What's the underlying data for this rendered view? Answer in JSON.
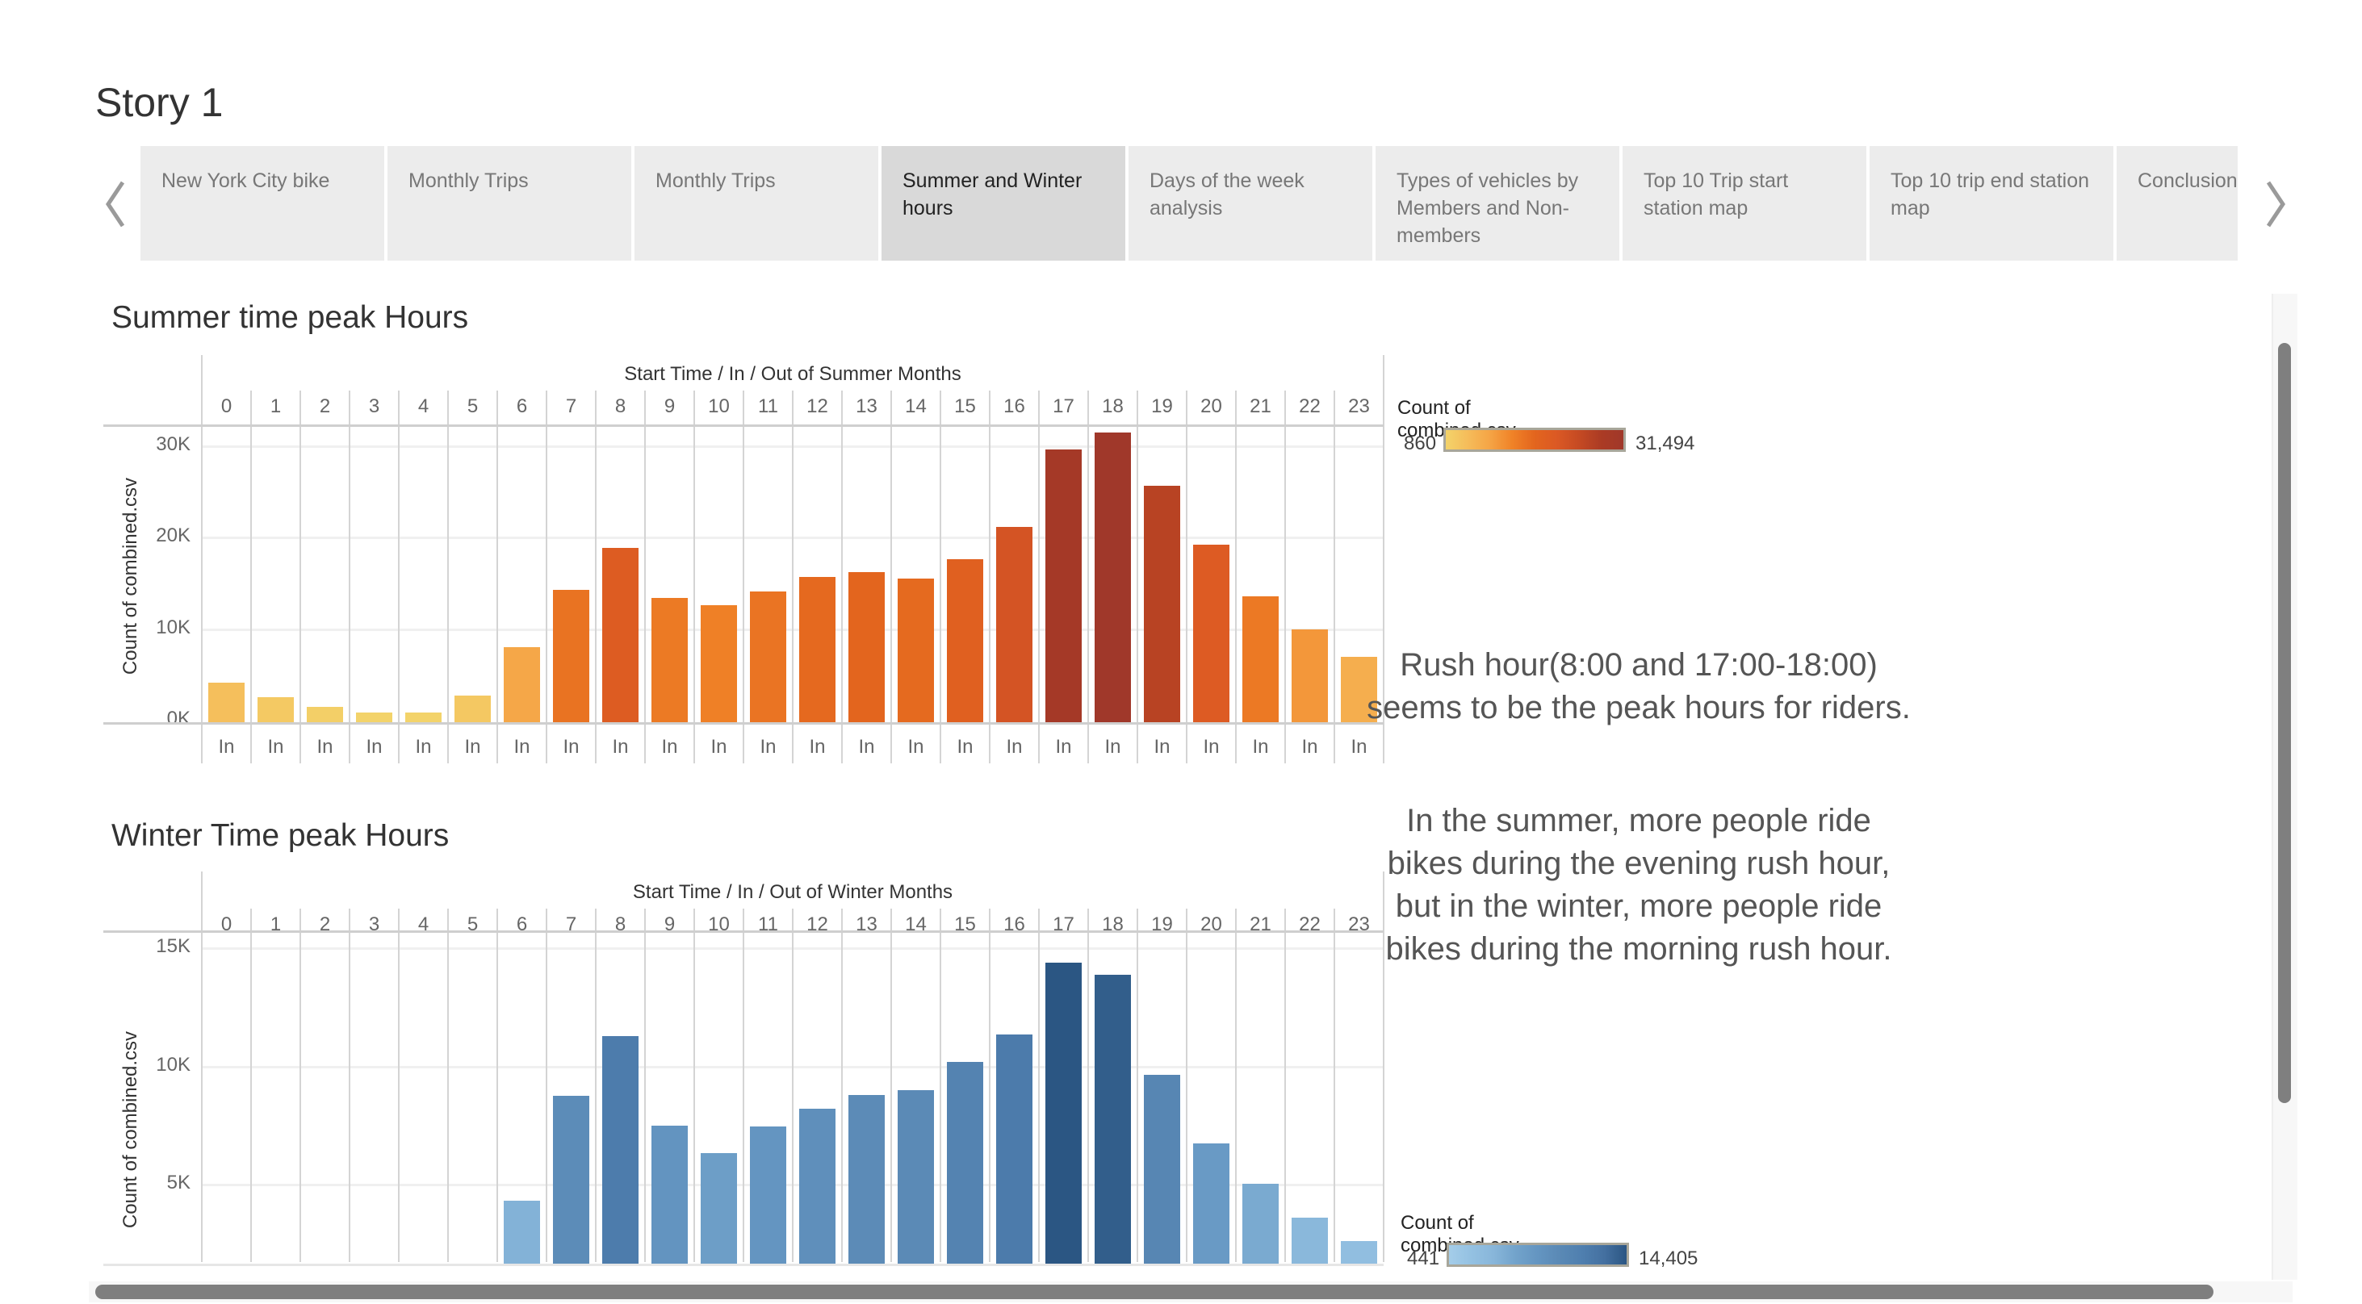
{
  "story_title": "Story 1",
  "nav": {
    "prev_icon": "chevron-left-icon",
    "next_icon": "chevron-right-icon"
  },
  "tabs": [
    {
      "label": "New York City bike",
      "active": false
    },
    {
      "label": "Monthly Trips",
      "active": false
    },
    {
      "label": "Monthly Trips",
      "active": false
    },
    {
      "label": "Summer and Winter hours",
      "active": true
    },
    {
      "label": "Days of the week analysis",
      "active": false
    },
    {
      "label": "Types of vehicles by Members and Non-members",
      "active": false
    },
    {
      "label": "Top 10 Trip start station map",
      "active": false
    },
    {
      "label": "Top 10 trip end station map",
      "active": false
    },
    {
      "label": "Conclusion",
      "active": false
    }
  ],
  "annotation": {
    "p1": "Rush hour(8:00 and 17:00-18:00) seems to be the peak hours for riders.",
    "p2": "In the summer, more people ride bikes during the evening rush hour, but in the winter, more people ride bikes during the morning rush hour."
  },
  "chart_data": [
    {
      "type": "bar",
      "title": "Summer time peak Hours",
      "header": "Start Time  /  In / Out of Summer Months",
      "ylabel": "Count of combined.csv",
      "categories": [
        "0",
        "1",
        "2",
        "3",
        "4",
        "5",
        "6",
        "7",
        "8",
        "9",
        "10",
        "11",
        "12",
        "13",
        "14",
        "15",
        "16",
        "17",
        "18",
        "19",
        "20",
        "21",
        "22",
        "23"
      ],
      "subcategory": "In",
      "values": [
        4150,
        2550,
        1500,
        860,
        880,
        2750,
        8000,
        14300,
        18900,
        13450,
        12600,
        14150,
        15700,
        16250,
        15550,
        17650,
        21200,
        29600,
        31494,
        25700,
        19250,
        13600,
        9950,
        6950
      ],
      "yticks": [
        {
          "value": 0,
          "label": "0K"
        },
        {
          "value": 10000,
          "label": "10K"
        },
        {
          "value": 20000,
          "label": "20K"
        },
        {
          "value": 30000,
          "label": "30K"
        }
      ],
      "ylim": [
        0,
        32900
      ],
      "grid": true,
      "legend": {
        "title": "Count of combined.csv",
        "min_label": "860",
        "max_label": "31,494",
        "min": 860,
        "max": 31494,
        "placement": "right"
      },
      "color_stops": [
        "#f3d36a",
        "#f5bc5a",
        "#f5a445",
        "#f08227",
        "#e3651e",
        "#db5924",
        "#c54a23",
        "#ab3b24",
        "#a0382a"
      ]
    },
    {
      "type": "bar",
      "title": "Winter Time peak Hours",
      "header": "Start Time  /  In / Out of Winter Months",
      "ylabel": "Count of combined.csv",
      "categories": [
        "0",
        "1",
        "2",
        "3",
        "4",
        "5",
        "6",
        "7",
        "8",
        "9",
        "10",
        "11",
        "12",
        "13",
        "14",
        "15",
        "16",
        "17",
        "18",
        "19",
        "20",
        "21",
        "22",
        "23"
      ],
      "subcategory": "In",
      "values": [
        null,
        null,
        null,
        null,
        null,
        null,
        4330,
        8760,
        11290,
        7520,
        6360,
        7460,
        8230,
        8820,
        9020,
        10190,
        11360,
        14405,
        13900,
        9670,
        6740,
        5060,
        3620,
        2640
      ],
      "yticks": [
        {
          "value": 5000,
          "label": "5K"
        },
        {
          "value": 10000,
          "label": "10K"
        },
        {
          "value": 15000,
          "label": "15K"
        }
      ],
      "ylim": [
        1740,
        15730
      ],
      "grid": true,
      "legend": {
        "title": "Count of combined.csv",
        "min_label": "441",
        "max_label": "14,405",
        "min": 441,
        "max": 14405,
        "placement": "bottom-right"
      },
      "color_stops": [
        "#a4cde9",
        "#94c1e2",
        "#88b6da",
        "#72a3cb",
        "#6495c1",
        "#5a89b5",
        "#4f7faf",
        "#4470a0",
        "#2b5683"
      ]
    }
  ]
}
